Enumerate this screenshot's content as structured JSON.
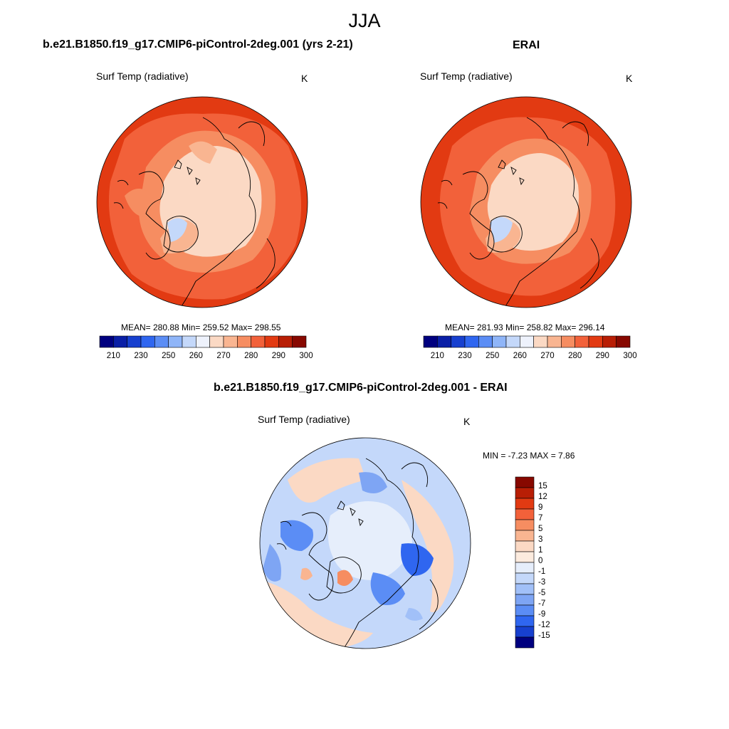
{
  "figure": {
    "title": "JJA"
  },
  "panels": {
    "model": {
      "title": "b.e21.B1850.f19_g17.CMIP6-piControl-2deg.001 (yrs 2-21)",
      "variable": "Surf Temp (radiative)",
      "units": "K",
      "stats": "MEAN= 280.88  Min= 259.52  Max= 298.55"
    },
    "obs": {
      "title": "ERAI",
      "variable": "Surf Temp (radiative)",
      "units": "K",
      "stats": "MEAN= 281.93  Min= 258.82  Max= 296.14"
    },
    "diff": {
      "title": "b.e21.B1850.f19_g17.CMIP6-piControl-2deg.001 - ERAI",
      "variable": "Surf Temp (radiative)",
      "units": "K",
      "stats": "MIN =  -7.23 MAX =   7.86"
    }
  },
  "colorbars": {
    "absolute": {
      "labels": [
        "210",
        "230",
        "250",
        "260",
        "270",
        "280",
        "290",
        "300"
      ],
      "colors": [
        "#00007f",
        "#0a1fa6",
        "#1740cf",
        "#2f66f0",
        "#5b8df5",
        "#8fb5f8",
        "#c4d8fa",
        "#eef2fc",
        "#fbd9c4",
        "#f9b591",
        "#f68d61",
        "#f2613a",
        "#e23a12",
        "#b81e05",
        "#870800"
      ]
    },
    "difference": {
      "labels": [
        "15",
        "12",
        "9",
        "7",
        "5",
        "3",
        "1",
        "0",
        "-1",
        "-3",
        "-5",
        "-7",
        "-9",
        "-12",
        "-15"
      ],
      "colors": [
        "#870800",
        "#b81e05",
        "#e23a12",
        "#f2613a",
        "#f68d61",
        "#f9b591",
        "#fbd9c4",
        "#fcebde",
        "#e6eefb",
        "#c4d8fa",
        "#a1c0f8",
        "#7ea5f4",
        "#5b8df5",
        "#2f66f0",
        "#1740cf",
        "#00007f"
      ]
    }
  }
}
